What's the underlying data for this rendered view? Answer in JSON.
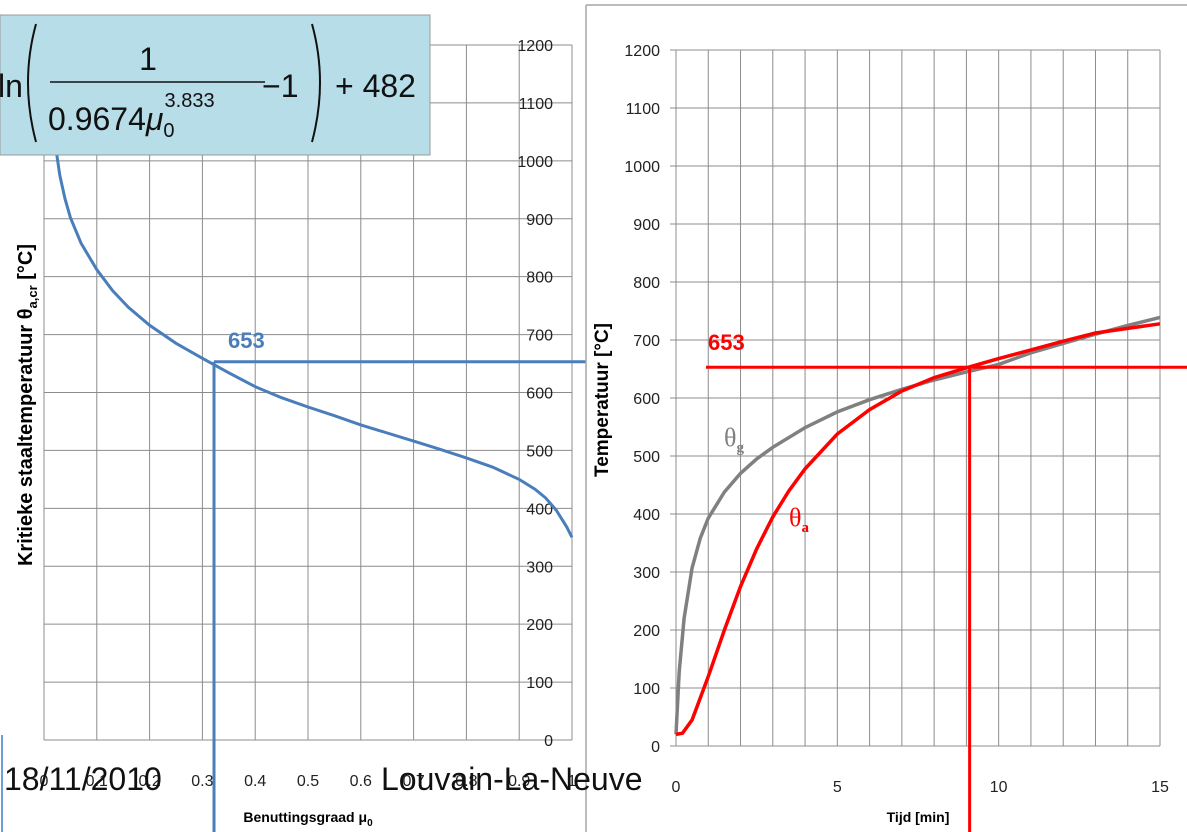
{
  "colors": {
    "left_curve": "#4a7ebb",
    "gas_curve": "#808080",
    "steel_curve": "#ff0000",
    "formula_box": "#b7dde8"
  },
  "formula": {
    "prefix": "ln",
    "numerator": "1",
    "coef": "0.9674",
    "mu": "μ",
    "mu_sub": "0",
    "exponent": "3.833",
    "minus_one": "−1",
    "plus_const": "+ 482"
  },
  "footer": {
    "date": "18/11/2010",
    "location": "Louvain-La-Neuve"
  },
  "chart_data": [
    {
      "type": "line",
      "ylabel": "Kritieke staaltemperatuur θ",
      "ylabel_sub": "a,cr",
      "ylabel_unit": " [°C]",
      "xlabel": "Benuttingsgraad μ",
      "xlabel_sub": "0",
      "xlim": [
        0,
        1
      ],
      "ylim": [
        0,
        1200
      ],
      "x_ticks_labels": [
        "0",
        "0.1",
        "0.2",
        "0.3",
        "0.4",
        "0.5",
        "0.6",
        "0.7",
        "0.8",
        "0.9",
        "1"
      ],
      "y_ticks_labels": [
        "0",
        "100",
        "200",
        "300",
        "400",
        "500",
        "600",
        "700",
        "800",
        "900",
        "1000",
        "1100",
        "1200"
      ],
      "annotation": "653",
      "reference": {
        "x": 0.322,
        "y": 653
      },
      "series": [
        {
          "x": [
            0.022,
            0.03,
            0.04,
            0.05,
            0.07,
            0.1,
            0.13,
            0.16,
            0.2,
            0.25,
            0.3,
            0.35,
            0.4,
            0.45,
            0.5,
            0.55,
            0.6,
            0.65,
            0.7,
            0.75,
            0.8,
            0.85,
            0.9,
            0.93,
            0.95,
            0.97,
            0.99,
            1.0
          ],
          "y": [
            1025,
            975,
            934,
            902,
            858,
            812,
            776,
            747,
            716,
            685,
            659,
            634,
            610,
            591,
            575,
            560,
            544,
            530,
            516,
            502,
            487,
            471,
            450,
            433,
            418,
            397,
            368,
            350
          ]
        }
      ]
    },
    {
      "type": "line",
      "ylabel": "Temperatuur [°C]",
      "xlabel": "Tijd [min]",
      "xlim": [
        0,
        15
      ],
      "ylim": [
        0,
        1200
      ],
      "x_ticks_labels": [
        "0",
        "5",
        "10",
        "15"
      ],
      "y_ticks_labels": [
        "0",
        "100",
        "200",
        "300",
        "400",
        "500",
        "600",
        "700",
        "800",
        "900",
        "1000",
        "1100",
        "1200"
      ],
      "annotation": "653",
      "reference": {
        "x": 9.1,
        "y": 653
      },
      "series": [
        {
          "name": "θg",
          "name_base": "θ",
          "name_sub": "g",
          "x": [
            0,
            0.1,
            0.25,
            0.5,
            0.75,
            1,
            1.5,
            2,
            2.5,
            3,
            4,
            5,
            6,
            7,
            8,
            9,
            10,
            11,
            12,
            13,
            14,
            15
          ],
          "y": [
            20,
            128,
            220,
            307,
            358,
            393,
            438,
            470,
            495,
            515,
            549,
            576,
            597,
            615,
            631,
            645,
            658,
            678,
            694,
            710,
            725,
            739
          ]
        },
        {
          "name": "θa",
          "name_base": "θ",
          "name_sub": "a",
          "x": [
            0,
            0.2,
            0.5,
            1,
            1.5,
            2,
            2.5,
            3,
            3.5,
            4,
            5,
            6,
            7,
            8,
            9,
            10,
            11,
            12,
            13,
            14,
            15
          ],
          "y": [
            20,
            22,
            45,
            120,
            200,
            275,
            340,
            395,
            440,
            478,
            538,
            580,
            612,
            635,
            652,
            668,
            683,
            698,
            712,
            720,
            728
          ]
        }
      ]
    }
  ]
}
